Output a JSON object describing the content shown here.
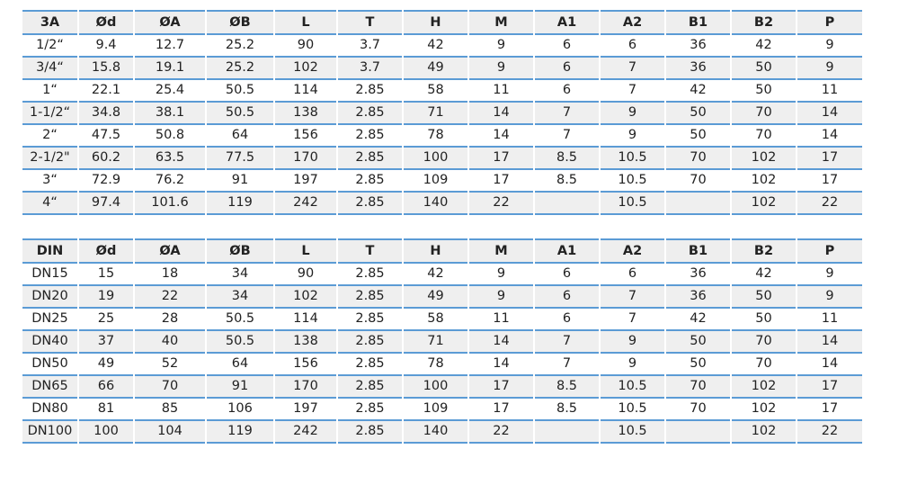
{
  "tables": [
    {
      "headers": [
        "3A",
        "Ød",
        "ØA",
        "ØB",
        "L",
        "T",
        "H",
        "M",
        "A1",
        "A2",
        "B1",
        "B2",
        "P"
      ],
      "rows": [
        [
          "1/2“",
          "9.4",
          "12.7",
          "25.2",
          "90",
          "3.7",
          "42",
          "9",
          "6",
          "6",
          "36",
          "42",
          "9"
        ],
        [
          "3/4“",
          "15.8",
          "19.1",
          "25.2",
          "102",
          "3.7",
          "49",
          "9",
          "6",
          "7",
          "36",
          "50",
          "9"
        ],
        [
          "1“",
          "22.1",
          "25.4",
          "50.5",
          "114",
          "2.85",
          "58",
          "11",
          "6",
          "7",
          "42",
          "50",
          "11"
        ],
        [
          "1-1/2“",
          "34.8",
          "38.1",
          "50.5",
          "138",
          "2.85",
          "71",
          "14",
          "7",
          "9",
          "50",
          "70",
          "14"
        ],
        [
          "2“",
          "47.5",
          "50.8",
          "64",
          "156",
          "2.85",
          "78",
          "14",
          "7",
          "9",
          "50",
          "70",
          "14"
        ],
        [
          "2-1/2\"",
          "60.2",
          "63.5",
          "77.5",
          "170",
          "2.85",
          "100",
          "17",
          "8.5",
          "10.5",
          "70",
          "102",
          "17"
        ],
        [
          "3“",
          "72.9",
          "76.2",
          "91",
          "197",
          "2.85",
          "109",
          "17",
          "8.5",
          "10.5",
          "70",
          "102",
          "17"
        ],
        [
          "4“",
          "97.4",
          "101.6",
          "119",
          "242",
          "2.85",
          "140",
          "22",
          "",
          "10.5",
          "",
          "102",
          "22"
        ]
      ]
    },
    {
      "headers": [
        "DIN",
        "Ød",
        "ØA",
        "ØB",
        "L",
        "T",
        "H",
        "M",
        "A1",
        "A2",
        "B1",
        "B2",
        "P"
      ],
      "rows": [
        [
          "DN15",
          "15",
          "18",
          "34",
          "90",
          "2.85",
          "42",
          "9",
          "6",
          "6",
          "36",
          "42",
          "9"
        ],
        [
          "DN20",
          "19",
          "22",
          "34",
          "102",
          "2.85",
          "49",
          "9",
          "6",
          "7",
          "36",
          "50",
          "9"
        ],
        [
          "DN25",
          "25",
          "28",
          "50.5",
          "114",
          "2.85",
          "58",
          "11",
          "6",
          "7",
          "42",
          "50",
          "11"
        ],
        [
          "DN40",
          "37",
          "40",
          "50.5",
          "138",
          "2.85",
          "71",
          "14",
          "7",
          "9",
          "50",
          "70",
          "14"
        ],
        [
          "DN50",
          "49",
          "52",
          "64",
          "156",
          "2.85",
          "78",
          "14",
          "7",
          "9",
          "50",
          "70",
          "14"
        ],
        [
          "DN65",
          "66",
          "70",
          "91",
          "170",
          "2.85",
          "100",
          "17",
          "8.5",
          "10.5",
          "70",
          "102",
          "17"
        ],
        [
          "DN80",
          "81",
          "85",
          "106",
          "197",
          "2.85",
          "109",
          "17",
          "8.5",
          "10.5",
          "70",
          "102",
          "17"
        ],
        [
          "DN100",
          "100",
          "104",
          "119",
          "242",
          "2.85",
          "140",
          "22",
          "",
          "10.5",
          "",
          "102",
          "22"
        ]
      ]
    }
  ],
  "colors": {
    "rule": "#5b9bd5",
    "stripe": "#efefef"
  }
}
